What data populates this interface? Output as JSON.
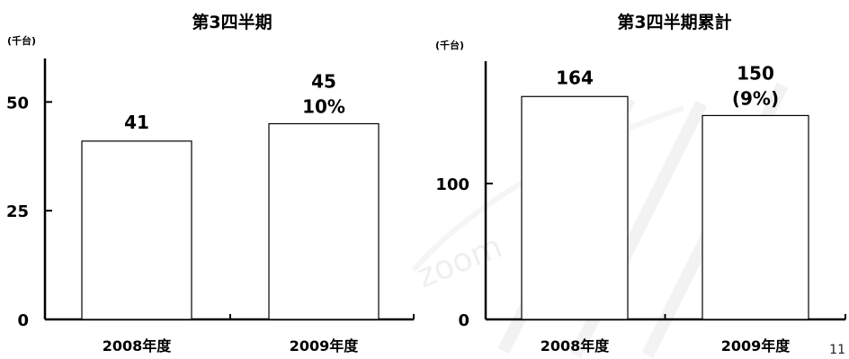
{
  "page_number": "11",
  "watermark_text": "zoom",
  "chart_data": [
    {
      "type": "bar",
      "title": "第3四半期",
      "unit_label": "(千台)",
      "categories": [
        "2008年度",
        "2009年度"
      ],
      "values": [
        41,
        45
      ],
      "value_labels": [
        "41",
        "45"
      ],
      "change_label": "10%",
      "ylim": [
        0,
        60
      ],
      "yticks": [
        0,
        25,
        50
      ],
      "ytick_labels": [
        "0",
        "25",
        "50"
      ],
      "bar_fill": "#ffffff",
      "bar_stroke": "#000000"
    },
    {
      "type": "bar",
      "title": "第3四半期累計",
      "unit_label": "(千台)",
      "categories": [
        "2008年度",
        "2009年度"
      ],
      "values": [
        164,
        150
      ],
      "value_labels": [
        "164",
        "150"
      ],
      "change_label": "(9%)",
      "ylim": [
        0,
        190
      ],
      "yticks": [
        0,
        100
      ],
      "ytick_labels": [
        "0",
        "100"
      ],
      "bar_fill": "#ffffff",
      "bar_stroke": "#000000"
    }
  ]
}
